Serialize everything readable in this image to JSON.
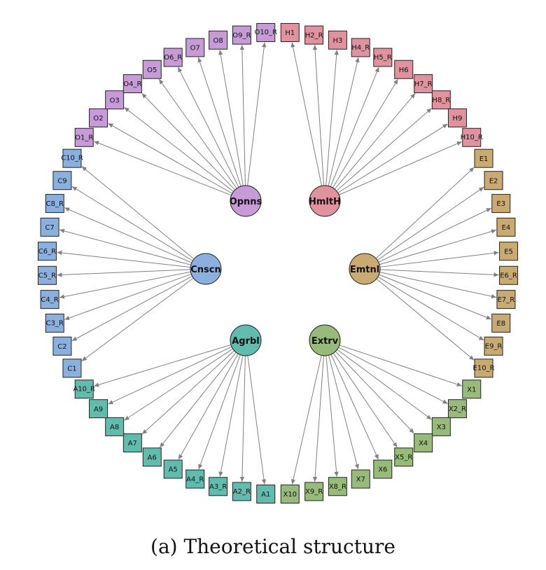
{
  "caption": "(a) Theoretical structure",
  "colors": {
    "Opnns": "#c79ad8",
    "HmltH": "#e0929f",
    "Cnscn": "#8cb0de",
    "Emtnl": "#c8aa72",
    "Agrbl": "#62bcae",
    "Extrv": "#98ba7a",
    "edge": "#808080"
  },
  "factors": [
    {
      "id": "Opnns",
      "label": "Opnns",
      "items": [
        "O1_R",
        "O2",
        "O3",
        "O4_R",
        "O5",
        "O6_R",
        "O7",
        "O8",
        "O9_R",
        "O10_R"
      ]
    },
    {
      "id": "HmltH",
      "label": "HmltH",
      "items": [
        "H1",
        "H2_R",
        "H3",
        "H4_R",
        "H5_R",
        "H6",
        "H7_R",
        "H8_R",
        "H9",
        "H10_R"
      ]
    },
    {
      "id": "Emtnl",
      "label": "Emtnl",
      "items": [
        "E1",
        "E2",
        "E3",
        "E4",
        "E5",
        "E6_R",
        "E7_R",
        "E8",
        "E9_R",
        "E10_R"
      ]
    },
    {
      "id": "Extrv",
      "label": "Extrv",
      "items": [
        "X1",
        "X2_R",
        "X3",
        "X4",
        "X5_R",
        "X6",
        "X7",
        "X8_R",
        "X9_R",
        "X10"
      ]
    },
    {
      "id": "Agrbl",
      "label": "Agrbl",
      "items": [
        "A1",
        "A2_R",
        "A3_R",
        "A4_R",
        "A5",
        "A6",
        "A7",
        "A8",
        "A9",
        "A10_R"
      ]
    },
    {
      "id": "Cnscn",
      "label": "Cnscn",
      "items": [
        "C1",
        "C2",
        "C3_R",
        "C4_R",
        "C5_R",
        "C6_R",
        "C7",
        "C8_R",
        "C9",
        "C10_R"
      ]
    }
  ],
  "ring_order": [
    "H1",
    "H2_R",
    "H3",
    "H4_R",
    "H5_R",
    "H6",
    "H7_R",
    "H8_R",
    "H9",
    "H10_R",
    "E1",
    "E2",
    "E3",
    "E4",
    "E5",
    "E6_R",
    "E7_R",
    "E8",
    "E9_R",
    "E10_R",
    "X1",
    "X2_R",
    "X3",
    "X4",
    "X5_R",
    "X6",
    "X7",
    "X8_R",
    "X9_R",
    "X10",
    "A1",
    "A2_R",
    "A3_R",
    "A4_R",
    "A5",
    "A6",
    "A7",
    "A8",
    "A9",
    "A10_R",
    "C1",
    "C2",
    "C3_R",
    "C4_R",
    "C5_R",
    "C6_R",
    "C7",
    "C8_R",
    "C9",
    "C10_R",
    "O1_R",
    "O2",
    "O3",
    "O4_R",
    "O5",
    "O6_R",
    "O7",
    "O8",
    "O9_R",
    "O10_R"
  ]
}
